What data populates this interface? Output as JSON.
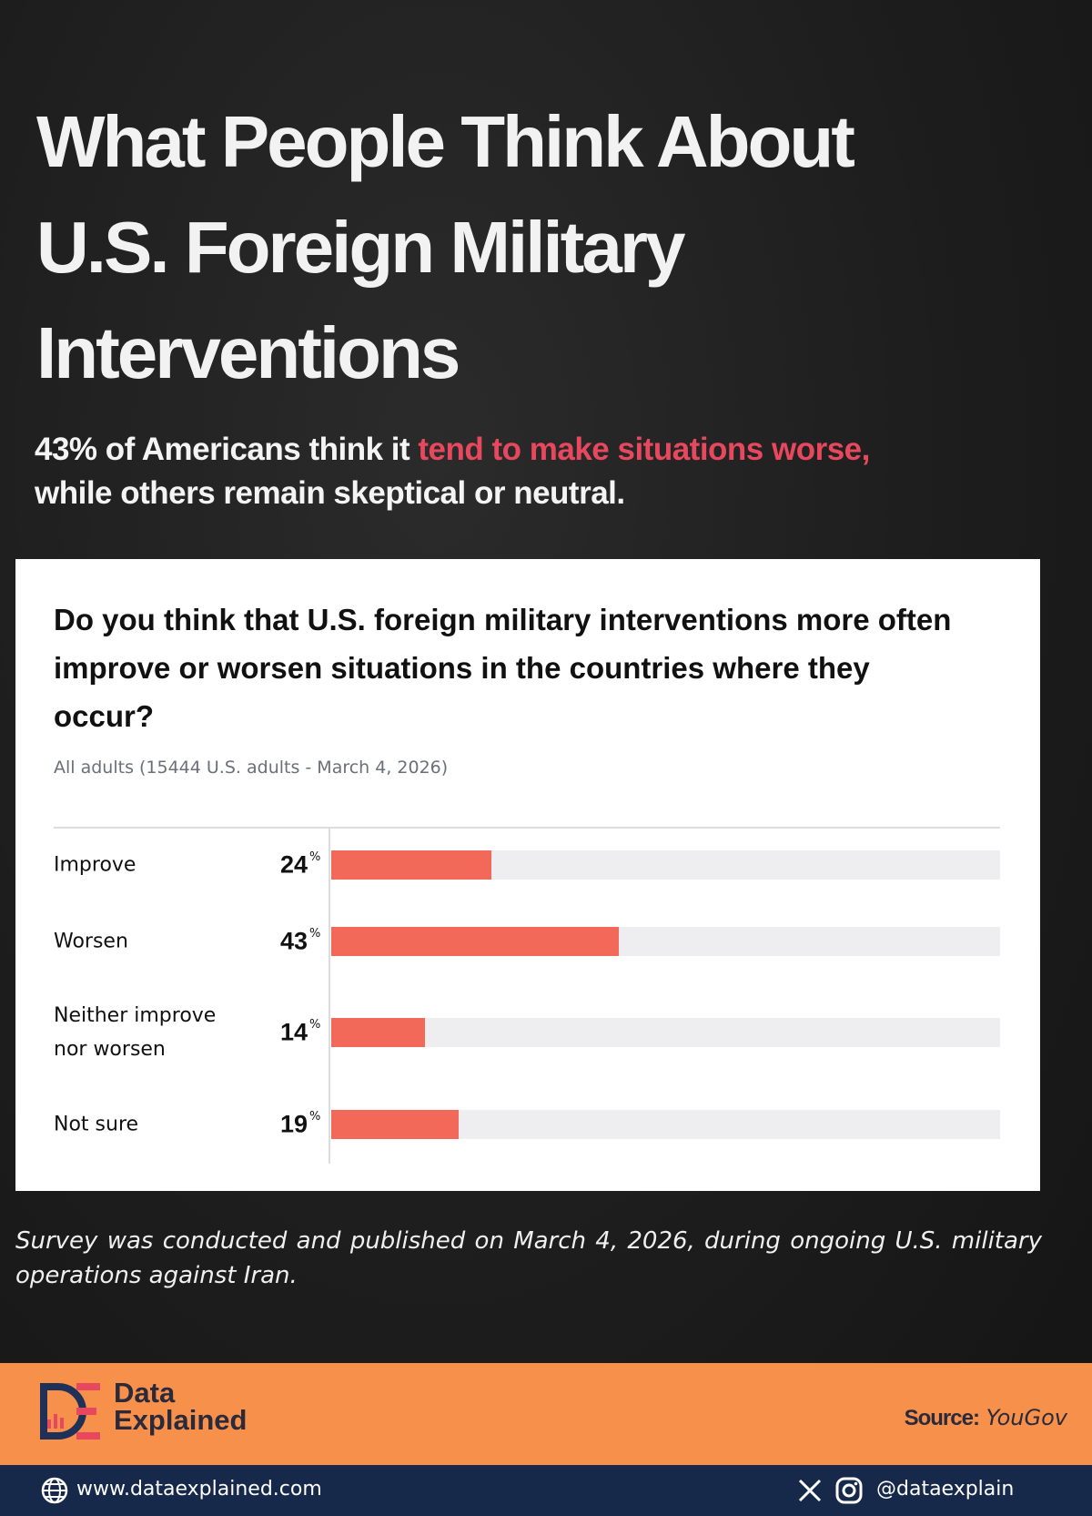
{
  "header": {
    "title": "What People Think About U.S. Foreign Military Interventions",
    "subtitle": {
      "before": "43% of Americans think it ",
      "highlight": "tend to make situations worse,",
      "after": " while others remain skeptical or neutral."
    }
  },
  "chart_data": {
    "type": "bar",
    "orientation": "horizontal",
    "title": "Do you think that U.S. foreign military interventions more often improve or worsen situations in the countries where they occur?",
    "subtitle": "All adults (15444 U.S. adults - March 4, 2026)",
    "categories": [
      "Improve",
      "Worsen",
      "Neither improve nor worsen",
      "Not sure"
    ],
    "values": [
      24,
      43,
      14,
      19
    ],
    "unit": "%",
    "color": "#f2695a",
    "track_color": "#eeeef1",
    "xlim": [
      0,
      100
    ]
  },
  "footnote": "Survey was conducted and published on March 4, 2026, during ongoing U.S. military operations against Iran.",
  "footer": {
    "brand": {
      "line1": "Data",
      "line2": "Explained"
    },
    "source": {
      "label": "Source:",
      "name": "YouGov"
    },
    "website": "www.dataexplained.com",
    "handle": "@dataexplain"
  }
}
